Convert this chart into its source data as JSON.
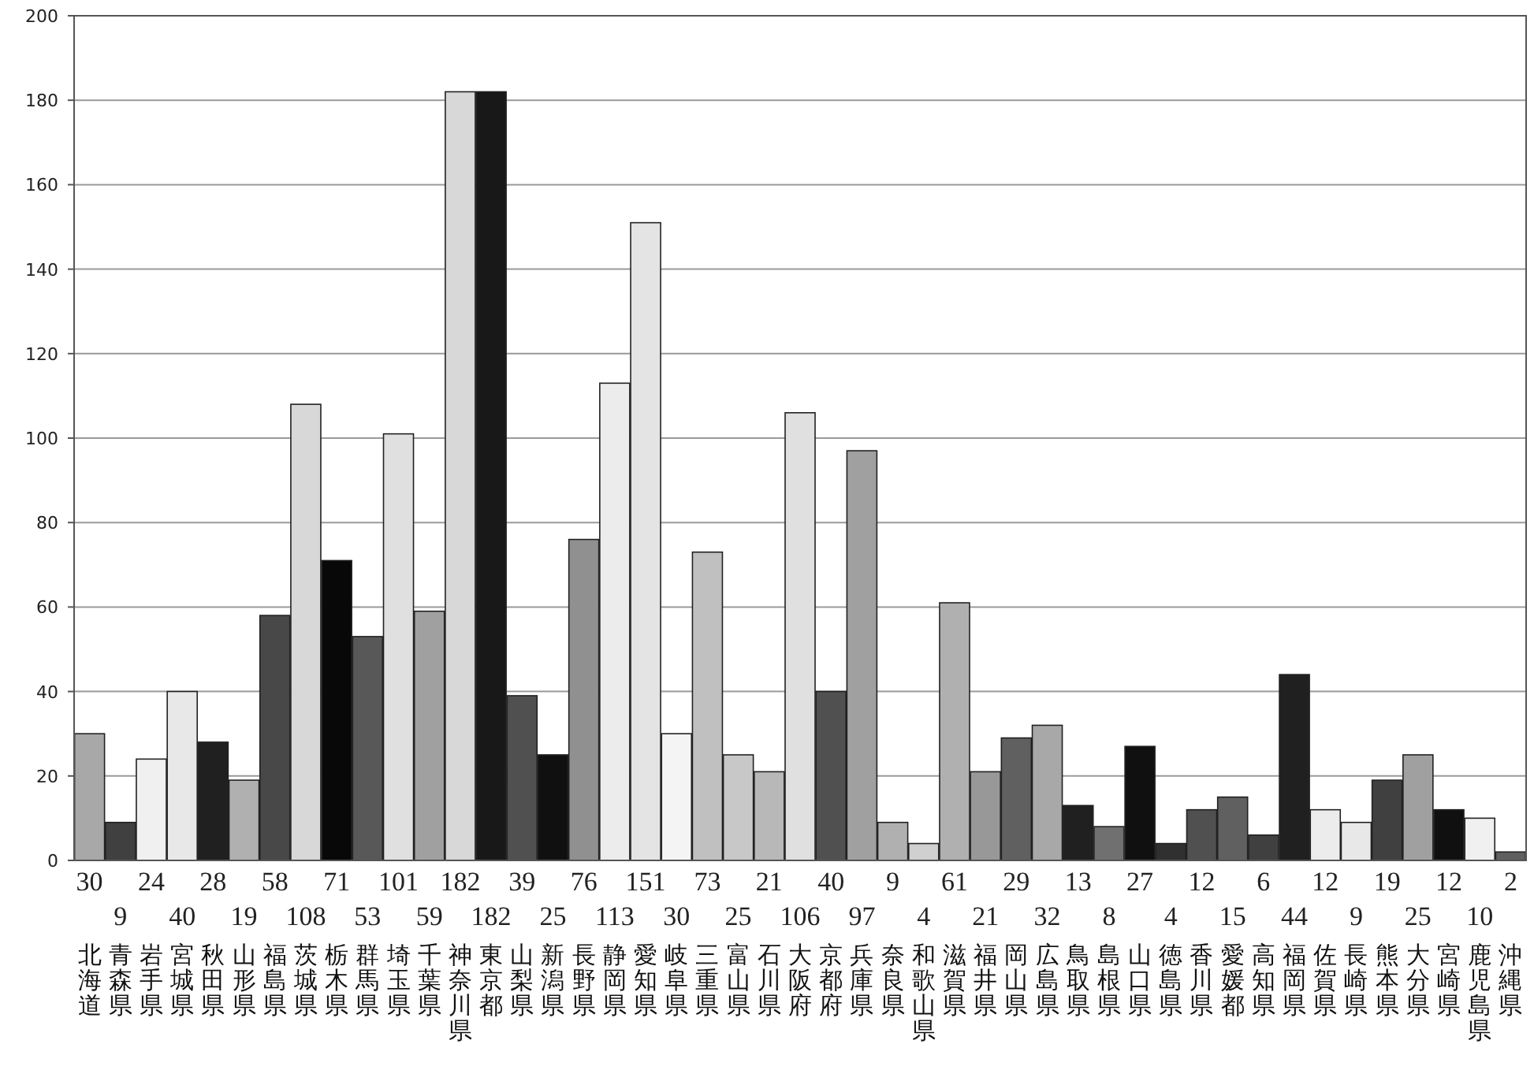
{
  "chart_data": {
    "type": "bar",
    "categories": [
      "北海道",
      "青森県",
      "岩手県",
      "宮城県",
      "秋田県",
      "山形県",
      "福島県",
      "茨城県",
      "栃木県",
      "群馬県",
      "埼玉県",
      "千葉県",
      "神奈川県",
      "東京都",
      "山梨県",
      "新潟県",
      "長野県",
      "静岡県",
      "愛知県",
      "岐阜県",
      "三重県",
      "富山県",
      "石川県",
      "大阪府",
      "京都府",
      "兵庫県",
      "奈良県",
      "和歌山県",
      "滋賀県",
      "福井県",
      "岡山県",
      "広島県",
      "鳥取県",
      "島根県",
      "山口県",
      "徳島県",
      "香川県",
      "愛媛都",
      "高知県",
      "福岡県",
      "佐賀県",
      "長崎県",
      "熊本県",
      "大分県",
      "宮崎県",
      "鹿児島県",
      "沖縄県"
    ],
    "values": [
      30,
      9,
      24,
      40,
      28,
      19,
      58,
      108,
      71,
      53,
      101,
      59,
      182,
      182,
      39,
      25,
      76,
      113,
      151,
      30,
      73,
      25,
      21,
      106,
      40,
      97,
      9,
      4,
      61,
      21,
      29,
      32,
      13,
      8,
      27,
      4,
      12,
      15,
      6,
      44,
      12,
      9,
      19,
      25,
      12,
      10,
      2
    ],
    "colors": [
      "#a8a8a8",
      "#404040",
      "#f0f0f0",
      "#e8e8e8",
      "#202020",
      "#b0b0b0",
      "#484848",
      "#d8d8d8",
      "#080808",
      "#585858",
      "#e0e0e0",
      "#a0a0a0",
      "#d8d8d8",
      "#181818",
      "#505050",
      "#101010",
      "#909090",
      "#ececec",
      "#e4e4e4",
      "#f4f4f4",
      "#c0c0c0",
      "#c8c8c8",
      "#b8b8b8",
      "#e0e0e0",
      "#505050",
      "#a0a0a0",
      "#b0b0b0",
      "#d0d0d0",
      "#b0b0b0",
      "#989898",
      "#606060",
      "#a8a8a8",
      "#202020",
      "#707070",
      "#101010",
      "#303030",
      "#505050",
      "#606060",
      "#404040",
      "#202020",
      "#ececec",
      "#e8e8e8",
      "#404040",
      "#a0a0a0",
      "#101010",
      "#f0f0f0",
      "#606060"
    ],
    "ylim": [
      0,
      200
    ],
    "yticks": [
      0,
      20,
      40,
      60,
      80,
      100,
      120,
      140,
      160,
      180,
      200
    ],
    "grid": "y",
    "data_labels": true
  }
}
